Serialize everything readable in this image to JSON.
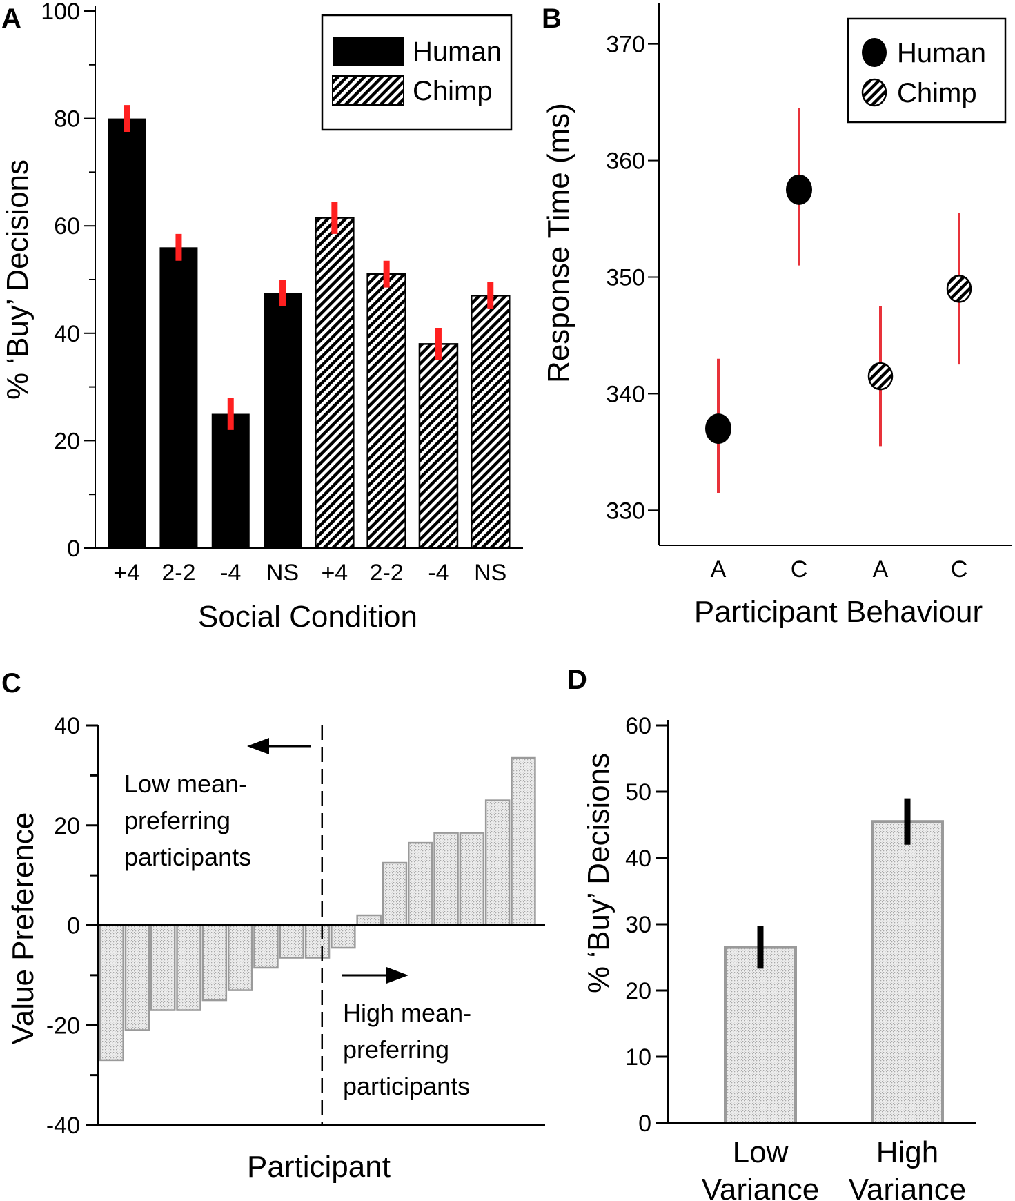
{
  "colors": {
    "black": "#000000",
    "red_error": "#ff2020",
    "red_ci": "#e8323a",
    "gray_bar": "#9a9a9a",
    "gray_fill": "#e2e2e2"
  },
  "chart_data": [
    {
      "panel": "A",
      "type": "bar",
      "categories": [
        "+4",
        "2-2",
        "-4",
        "NS",
        "+4",
        "2-2",
        "-4",
        "NS"
      ],
      "series": [
        {
          "name": "Human",
          "style": "solid-black",
          "values": [
            80,
            56,
            25,
            47.5,
            null,
            null,
            null,
            null
          ],
          "errors": [
            2.5,
            2.5,
            3,
            2.5,
            null,
            null,
            null,
            null
          ]
        },
        {
          "name": "Chimp",
          "style": "hatched",
          "values": [
            null,
            null,
            null,
            null,
            61.5,
            51,
            38,
            47
          ],
          "errors": [
            null,
            null,
            null,
            null,
            3,
            2.5,
            3,
            2.5
          ]
        }
      ],
      "xlabel": "Social Condition",
      "ylabel": "% ‘Buy’ Decisions",
      "ylim": [
        0,
        100
      ],
      "yticks": [
        0,
        20,
        40,
        60,
        80,
        100
      ],
      "ytick_labels": [
        "0",
        "20",
        "40",
        "60",
        "80",
        "100"
      ],
      "legend": [
        "Human",
        "Chimp"
      ],
      "legend_position": "top-right"
    },
    {
      "panel": "B",
      "type": "scatter",
      "categories": [
        "A",
        "C",
        "A",
        "C"
      ],
      "series": [
        {
          "name": "Human",
          "style": "filled-black",
          "values": [
            337,
            357.5,
            null,
            null
          ],
          "ci_low": [
            331.5,
            351,
            null,
            null
          ],
          "ci_high": [
            343,
            364.5,
            null,
            null
          ]
        },
        {
          "name": "Chimp",
          "style": "hatched",
          "values": [
            null,
            null,
            341.5,
            349
          ],
          "ci_low": [
            null,
            null,
            335.5,
            342.5
          ],
          "ci_high": [
            null,
            null,
            347.5,
            355.5
          ]
        }
      ],
      "xlabel": "Participant Behaviour",
      "ylabel": "Response Time (ms)",
      "ylim": [
        327,
        373
      ],
      "yticks": [
        330,
        340,
        350,
        360,
        370
      ],
      "ytick_labels": [
        "330",
        "340",
        "350",
        "360",
        "370"
      ],
      "legend": [
        "Human",
        "Chimp"
      ],
      "legend_position": "top-right"
    },
    {
      "panel": "C",
      "type": "bar",
      "values": [
        -27,
        -21,
        -17,
        -17,
        -15,
        -13,
        -8.5,
        -6.5,
        -6.5,
        -4.5,
        2,
        12.5,
        16.5,
        18.5,
        18.5,
        25,
        33.5
      ],
      "xlabel": "Participant",
      "ylabel": "Value Preference",
      "ylim": [
        -40,
        40
      ],
      "yticks": [
        -40,
        -20,
        0,
        20,
        40
      ],
      "ytick_labels": [
        "-40",
        "-20",
        "0",
        "20",
        "40"
      ],
      "divider_after_index": 8,
      "annotations": {
        "low": [
          "Low mean-",
          "preferring",
          "participants"
        ],
        "high": [
          "High mean-",
          "preferring",
          "participants"
        ]
      }
    },
    {
      "panel": "D",
      "type": "bar",
      "categories": [
        [
          "Low",
          "Variance"
        ],
        [
          "High",
          "Variance"
        ]
      ],
      "values": [
        26.5,
        45.5
      ],
      "errors": [
        3.2,
        3.5
      ],
      "xlabel": "",
      "ylabel": "% ‘Buy’ Decisions",
      "ylim": [
        0,
        60
      ],
      "yticks": [
        0,
        10,
        20,
        30,
        40,
        50,
        60
      ],
      "ytick_labels": [
        "0",
        "10",
        "20",
        "30",
        "40",
        "50",
        "60"
      ]
    }
  ]
}
